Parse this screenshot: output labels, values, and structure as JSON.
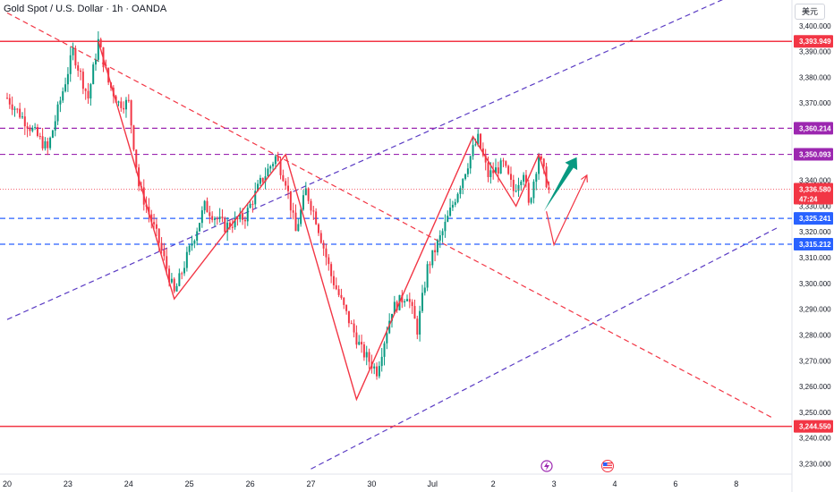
{
  "header": {
    "title": "Gold Spot / U.S. Dollar · 1h · OANDA",
    "currency": "美元"
  },
  "chart_data": {
    "type": "candlestick",
    "title": "Gold Spot / U.S. Dollar · 1h · OANDA",
    "ylim": [
      3226,
      3410
    ],
    "y_ticks": [
      3230,
      3240,
      3250,
      3260,
      3270,
      3280,
      3290,
      3300,
      3310,
      3320,
      3330,
      3340,
      3350,
      3360,
      3370,
      3380,
      3390,
      3400
    ],
    "y_tick_labels": [
      "3,230.000",
      "3,240.000",
      "3,250.000",
      "3,260.000",
      "3,270.000",
      "3,280.000",
      "3,290.000",
      "3,300.000",
      "3,310.000",
      "3,320.000",
      "3,330.000",
      "3,340.000",
      "3,350.000",
      "3,360.000",
      "3,370.000",
      "3,380.000",
      "3,390.000",
      "3,400.000"
    ],
    "x_tick_labels": [
      "20",
      "23",
      "24",
      "25",
      "26",
      "27",
      "30",
      "Jul",
      "2",
      "3",
      "4",
      "6",
      "8"
    ],
    "x_tick_hours": [
      0,
      24,
      48,
      72,
      96,
      120,
      144,
      168,
      192,
      216,
      240,
      264,
      288
    ],
    "x_range_hours": [
      0,
      310
    ],
    "price_levels": [
      {
        "value": 3393.949,
        "label": "3,393.949",
        "color": "#f23645",
        "style": "solid"
      },
      {
        "value": 3360.214,
        "label": "3,360.214",
        "color": "#9c27b0",
        "style": "dashed"
      },
      {
        "value": 3350.093,
        "label": "3,350.093",
        "color": "#9c27b0",
        "style": "dashed"
      },
      {
        "value": 3325.241,
        "label": "3,325.241",
        "color": "#2962ff",
        "style": "dashed"
      },
      {
        "value": 3315.212,
        "label": "3,315.212",
        "color": "#2962ff",
        "style": "dashed"
      },
      {
        "value": 3244.55,
        "label": "3,244.550",
        "color": "#f23645",
        "style": "solid"
      }
    ],
    "current_price": {
      "value": 3336.58,
      "label": "3,336.580",
      "countdown": "47:24",
      "color": "#f23645"
    },
    "zigzag": [
      {
        "x": 0,
        "y": 3372
      },
      {
        "x": 16,
        "y": 3352
      },
      {
        "x": 26,
        "y": 3390
      },
      {
        "x": 32,
        "y": 3372
      },
      {
        "x": 36,
        "y": 3394
      },
      {
        "x": 40,
        "y": 3378
      },
      {
        "x": 44,
        "y": 3370
      },
      {
        "x": 48,
        "y": 3370
      },
      {
        "x": 52,
        "y": 3338
      },
      {
        "x": 60,
        "y": 3316
      },
      {
        "x": 66,
        "y": 3296
      },
      {
        "x": 72,
        "y": 3313
      },
      {
        "x": 78,
        "y": 3330
      },
      {
        "x": 86,
        "y": 3322
      },
      {
        "x": 94,
        "y": 3326
      },
      {
        "x": 100,
        "y": 3339
      },
      {
        "x": 106,
        "y": 3349
      },
      {
        "x": 110,
        "y": 3340
      },
      {
        "x": 114,
        "y": 3320
      },
      {
        "x": 118,
        "y": 3336
      },
      {
        "x": 122,
        "y": 3325
      },
      {
        "x": 128,
        "y": 3303
      },
      {
        "x": 134,
        "y": 3288
      },
      {
        "x": 140,
        "y": 3274
      },
      {
        "x": 146,
        "y": 3266
      },
      {
        "x": 152,
        "y": 3290
      },
      {
        "x": 158,
        "y": 3296
      },
      {
        "x": 162,
        "y": 3282
      },
      {
        "x": 166,
        "y": 3306
      },
      {
        "x": 172,
        "y": 3320
      },
      {
        "x": 178,
        "y": 3336
      },
      {
        "x": 184,
        "y": 3352
      },
      {
        "x": 186,
        "y": 3356
      },
      {
        "x": 190,
        "y": 3342
      },
      {
        "x": 196,
        "y": 3346
      },
      {
        "x": 200,
        "y": 3336
      },
      {
        "x": 204,
        "y": 3344
      },
      {
        "x": 206,
        "y": 3330
      },
      {
        "x": 210,
        "y": 3350
      },
      {
        "x": 214,
        "y": 3336
      }
    ],
    "pattern_polyline": [
      {
        "x": 36,
        "y": 3394
      },
      {
        "x": 66,
        "y": 3294
      },
      {
        "x": 110,
        "y": 3350
      },
      {
        "x": 138,
        "y": 3255
      },
      {
        "x": 184,
        "y": 3357
      },
      {
        "x": 201,
        "y": 3330
      },
      {
        "x": 210,
        "y": 3350
      },
      {
        "x": 214,
        "y": 3338
      }
    ],
    "bull_arrow": {
      "from": {
        "x": 212,
        "y": 3328
      },
      "to": {
        "x": 225,
        "y": 3349
      },
      "color": "#089981"
    },
    "projection_path": [
      {
        "x": 213,
        "y": 3328
      },
      {
        "x": 216,
        "y": 3315
      },
      {
        "x": 229,
        "y": 3342
      }
    ],
    "trendlines": [
      {
        "from": {
          "x": 0,
          "y": 3286
        },
        "to": {
          "x": 305,
          "y": 3420
        },
        "color": "#5b3cc4",
        "style": "dashed"
      },
      {
        "from": {
          "x": 120,
          "y": 3228
        },
        "to": {
          "x": 305,
          "y": 3322
        },
        "color": "#5b3cc4",
        "style": "dashed"
      },
      {
        "from": {
          "x": 0,
          "y": 3405
        },
        "to": {
          "x": 302,
          "y": 3248
        },
        "color": "#f23645",
        "style": "dashed"
      }
    ]
  },
  "icons": {
    "event_icon": "lightning-icon",
    "flag_icon": "us-flag-icon"
  }
}
